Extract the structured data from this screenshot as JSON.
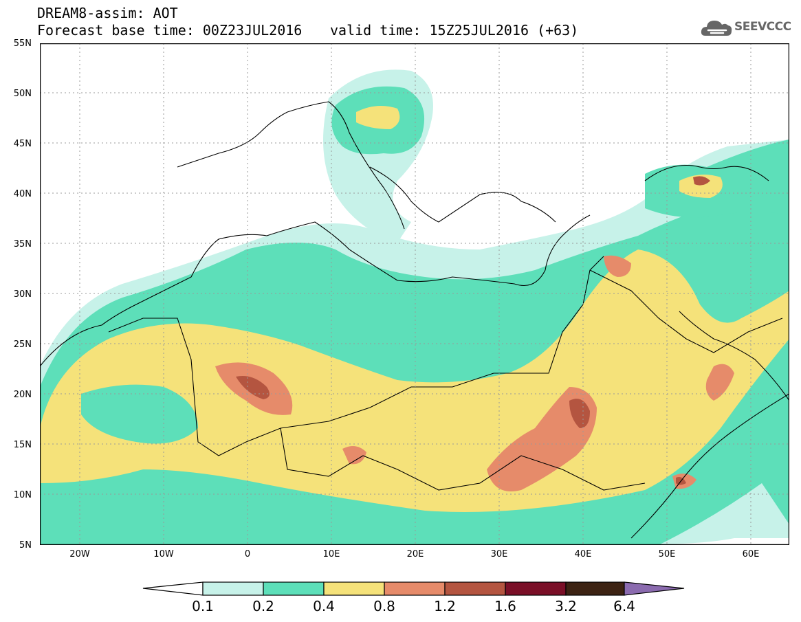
{
  "header": {
    "title_line1": "DREAM8-assim: AOT",
    "title_line2": "Forecast base time: 00Z23JUL2016",
    "valid_time": "valid time: 15Z25JUL2016 (+63)"
  },
  "logo": {
    "text": "SEEVCCC",
    "icon": "cloud-logo-icon"
  },
  "map": {
    "lat_labels": [
      "55N",
      "50N",
      "45N",
      "40N",
      "35N",
      "30N",
      "25N",
      "20N",
      "15N",
      "10N",
      "5N"
    ],
    "lon_labels": [
      "20W",
      "10W",
      "0",
      "10E",
      "20E",
      "30E",
      "40E",
      "50E",
      "60E"
    ]
  },
  "legend": {
    "levels": [
      "0.1",
      "0.2",
      "0.4",
      "0.8",
      "1.2",
      "1.6",
      "3.2",
      "6.4"
    ],
    "colors": [
      "#c7f2e9",
      "#5ddfb9",
      "#f5e27a",
      "#e68b6a",
      "#b45540",
      "#7a0f27",
      "#3d2313",
      "#8b6baf"
    ],
    "under_color": "#ffffff"
  }
}
